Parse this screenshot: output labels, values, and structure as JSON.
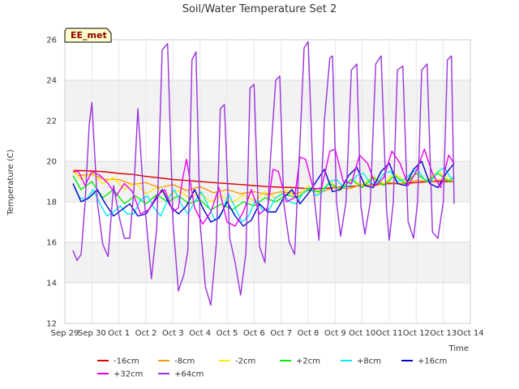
{
  "chart_data": {
    "type": "line",
    "title": "Soil/Water Temperature Set 2",
    "xlabel": "Time",
    "ylabel": "Temperature (C)",
    "badge": "EE_met",
    "ylim": [
      12,
      26
    ],
    "yticks": [
      "12",
      "14",
      "16",
      "18",
      "20",
      "22",
      "24",
      "26"
    ],
    "xlim": [
      0,
      15
    ],
    "xticks": [
      "Sep 29",
      "Sep 30",
      "Oct 1",
      "Oct 2",
      "Oct 3",
      "Oct 4",
      "Oct 5",
      "Oct 6",
      "Oct 7",
      "Oct 8",
      "Oct 9",
      "Oct 10",
      "Oct 11",
      "Oct 12",
      "Oct 13",
      "Oct 14"
    ],
    "grid": true,
    "legend": "bottom",
    "series": [
      {
        "name": "-16cm",
        "color": "#dd0000",
        "x": [
          0.3,
          1,
          1.5,
          2,
          2.5,
          3,
          3.5,
          4,
          4.5,
          5,
          5.5,
          6,
          6.5,
          7,
          7.5,
          8,
          8.5,
          9,
          9.5,
          10,
          10.5,
          11,
          11.5,
          12,
          12.5,
          13,
          13.5,
          14,
          14.4
        ],
        "y": [
          19.55,
          19.52,
          19.48,
          19.4,
          19.35,
          19.25,
          19.18,
          19.1,
          19.05,
          19.0,
          18.95,
          18.9,
          18.85,
          18.8,
          18.75,
          18.72,
          18.7,
          18.65,
          18.65,
          18.7,
          18.75,
          18.8,
          18.85,
          18.9,
          18.9,
          18.95,
          19.0,
          19.0,
          19.0
        ]
      },
      {
        "name": "-8cm",
        "color": "#ff9900",
        "x": [
          0.3,
          0.5,
          1,
          1.5,
          2,
          2.5,
          3,
          3.5,
          4,
          4.5,
          5,
          5.5,
          6,
          6.5,
          7,
          7.5,
          8,
          8.5,
          9,
          9.5,
          10,
          10.5,
          11,
          11.5,
          12,
          12.5,
          13,
          13.5,
          14,
          14.4
        ],
        "y": [
          19.5,
          19.3,
          19.35,
          19.1,
          19.1,
          18.85,
          18.95,
          18.7,
          18.85,
          18.55,
          18.75,
          18.45,
          18.6,
          18.4,
          18.5,
          18.35,
          18.5,
          18.4,
          18.55,
          18.5,
          18.7,
          18.65,
          18.85,
          18.8,
          18.95,
          18.9,
          19.05,
          19.0,
          19.1,
          19.0
        ]
      },
      {
        "name": "-2cm",
        "color": "#ffee00",
        "x": [
          0.3,
          0.6,
          1,
          1.4,
          1.8,
          2.2,
          2.6,
          3,
          3.4,
          3.8,
          4.2,
          4.6,
          5,
          5.4,
          5.8,
          6.2,
          6.6,
          7,
          7.4,
          7.8,
          8.2,
          8.6,
          9,
          9.4,
          9.8,
          10.2,
          10.6,
          11,
          11.4,
          11.8,
          12.2,
          12.6,
          13,
          13.4,
          13.8,
          14.2,
          14.4
        ],
        "y": [
          19.6,
          19.1,
          19.45,
          18.9,
          19.2,
          18.6,
          18.95,
          18.4,
          18.7,
          18.3,
          18.55,
          18.2,
          18.4,
          18.0,
          18.3,
          17.95,
          18.35,
          18.05,
          18.5,
          18.2,
          18.6,
          18.2,
          18.8,
          18.4,
          19.0,
          18.6,
          19.1,
          18.8,
          19.25,
          18.9,
          19.4,
          19.0,
          19.4,
          19.05,
          19.5,
          19.1,
          19.2
        ]
      },
      {
        "name": "+2cm",
        "color": "#00ee00",
        "x": [
          0.3,
          0.6,
          1,
          1.4,
          1.8,
          2.2,
          2.6,
          3,
          3.4,
          3.8,
          4.2,
          4.6,
          5,
          5.4,
          5.8,
          6.2,
          6.6,
          7,
          7.4,
          7.8,
          8.2,
          8.6,
          9,
          9.4,
          9.8,
          10.2,
          10.6,
          11,
          11.4,
          11.8,
          12.2,
          12.6,
          13,
          13.4,
          13.8,
          14.2,
          14.4
        ],
        "y": [
          19.3,
          18.6,
          19.0,
          18.2,
          18.6,
          17.9,
          18.3,
          17.9,
          18.35,
          18.0,
          18.3,
          17.9,
          18.1,
          17.6,
          17.9,
          17.6,
          18.0,
          17.8,
          18.2,
          18.0,
          18.35,
          18.2,
          18.6,
          18.5,
          18.9,
          18.6,
          19.1,
          18.7,
          19.2,
          18.8,
          19.3,
          18.9,
          19.4,
          19.0,
          19.4,
          19.0,
          19.2
        ]
      },
      {
        "name": "+8cm",
        "color": "#00eeee",
        "x": [
          0.3,
          0.55,
          0.8,
          1.05,
          1.3,
          1.55,
          1.8,
          2.05,
          2.3,
          2.55,
          2.8,
          3.05,
          3.3,
          3.55,
          3.8,
          4.05,
          4.3,
          4.55,
          4.8,
          5.05,
          5.3,
          5.55,
          5.8,
          6.05,
          6.3,
          6.55,
          6.8,
          7.05,
          7.3,
          7.55,
          7.8,
          8.05,
          8.3,
          8.55,
          8.8,
          9.05,
          9.3,
          9.55,
          9.8,
          10.05,
          10.3,
          10.55,
          10.8,
          11.05,
          11.3,
          11.55,
          11.8,
          12.05,
          12.3,
          12.55,
          12.8,
          13.05,
          13.3,
          13.55,
          13.8,
          14.05,
          14.3,
          14.4
        ],
        "y": [
          18.9,
          18.2,
          18.1,
          18.6,
          17.9,
          17.3,
          17.5,
          17.8,
          17.4,
          17.4,
          18.1,
          18.3,
          17.7,
          17.3,
          18.1,
          18.6,
          17.9,
          17.4,
          18.0,
          18.5,
          17.8,
          17.1,
          17.4,
          18.4,
          17.7,
          17.0,
          17.3,
          18.1,
          17.6,
          17.6,
          18.2,
          18.4,
          18.0,
          17.9,
          18.4,
          18.7,
          18.3,
          18.5,
          19.0,
          19.1,
          18.7,
          18.8,
          19.3,
          19.4,
          18.9,
          18.9,
          19.4,
          19.5,
          19.0,
          19.1,
          19.4,
          19.6,
          19.1,
          19.0,
          19.5,
          19.7,
          19.1,
          19.3
        ]
      },
      {
        "name": "+16cm",
        "color": "#0000cc",
        "x": [
          0.3,
          0.6,
          0.9,
          1.2,
          1.5,
          1.8,
          2.1,
          2.4,
          2.7,
          3.0,
          3.3,
          3.6,
          3.9,
          4.2,
          4.5,
          4.8,
          5.1,
          5.4,
          5.7,
          6.0,
          6.3,
          6.6,
          6.9,
          7.2,
          7.5,
          7.8,
          8.1,
          8.4,
          8.7,
          9.0,
          9.3,
          9.6,
          9.9,
          10.2,
          10.5,
          10.8,
          11.1,
          11.4,
          11.7,
          12.0,
          12.3,
          12.6,
          12.9,
          13.2,
          13.5,
          13.8,
          14.1,
          14.4
        ],
        "y": [
          18.9,
          18.0,
          18.2,
          18.6,
          17.9,
          17.3,
          17.6,
          17.9,
          17.3,
          17.4,
          18.0,
          18.6,
          17.8,
          17.4,
          17.8,
          18.6,
          17.7,
          17.0,
          17.2,
          18.0,
          17.3,
          16.8,
          17.1,
          17.9,
          17.5,
          17.5,
          18.2,
          18.6,
          17.9,
          18.4,
          19.0,
          19.6,
          18.5,
          18.6,
          19.3,
          19.7,
          18.8,
          18.7,
          19.5,
          19.9,
          18.9,
          18.8,
          19.6,
          20.0,
          18.9,
          18.7,
          19.4,
          19.9
        ]
      },
      {
        "name": "+32cm",
        "color": "#ee00ee",
        "x": [
          0.3,
          0.5,
          0.75,
          1.0,
          1.3,
          1.6,
          1.9,
          2.2,
          2.5,
          2.8,
          3.1,
          3.4,
          3.7,
          4.0,
          4.2,
          4.35,
          4.5,
          4.8,
          5.1,
          5.4,
          5.7,
          6.0,
          6.3,
          6.6,
          6.9,
          7.2,
          7.5,
          7.7,
          7.9,
          8.2,
          8.5,
          8.7,
          8.9,
          9.2,
          9.5,
          9.8,
          10.0,
          10.3,
          10.6,
          10.9,
          11.2,
          11.5,
          11.8,
          12.1,
          12.4,
          12.7,
          13.0,
          13.3,
          13.6,
          13.9,
          14.2,
          14.4
        ],
        "y": [
          19.5,
          19.5,
          18.8,
          19.5,
          19.3,
          18.9,
          18.3,
          18.9,
          18.5,
          17.4,
          17.6,
          18.3,
          18.6,
          17.5,
          17.7,
          19.1,
          20.1,
          17.7,
          16.9,
          17.5,
          18.7,
          17.0,
          16.8,
          17.5,
          18.6,
          17.4,
          17.7,
          19.6,
          19.5,
          18.0,
          18.2,
          20.2,
          20.1,
          18.6,
          18.7,
          20.5,
          20.6,
          19.0,
          18.9,
          20.3,
          19.9,
          18.8,
          19.2,
          20.5,
          19.9,
          18.8,
          19.5,
          20.6,
          19.4,
          18.7,
          20.3,
          19.9
        ]
      },
      {
        "name": "+64cm",
        "color": "#9933dd",
        "x": [
          0.3,
          0.45,
          0.6,
          0.75,
          0.9,
          1.0,
          1.2,
          1.4,
          1.6,
          1.8,
          2.0,
          2.2,
          2.4,
          2.55,
          2.7,
          2.9,
          3.0,
          3.2,
          3.4,
          3.6,
          3.8,
          4.0,
          4.2,
          4.4,
          4.55,
          4.7,
          4.85,
          5.0,
          5.2,
          5.4,
          5.6,
          5.75,
          5.9,
          6.1,
          6.3,
          6.5,
          6.7,
          6.85,
          7.0,
          7.2,
          7.4,
          7.6,
          7.8,
          7.95,
          8.1,
          8.3,
          8.5,
          8.7,
          8.85,
          9.0,
          9.2,
          9.4,
          9.6,
          9.8,
          9.9,
          10.05,
          10.2,
          10.4,
          10.6,
          10.8,
          10.95,
          11.1,
          11.3,
          11.5,
          11.7,
          11.9,
          12.0,
          12.15,
          12.3,
          12.5,
          12.7,
          12.9,
          13.05,
          13.2,
          13.4,
          13.6,
          13.8,
          14.0,
          14.15,
          14.3,
          14.4
        ],
        "y": [
          15.6,
          15.1,
          15.4,
          18.0,
          21.8,
          22.9,
          18.0,
          15.9,
          15.3,
          18.8,
          17.3,
          16.2,
          16.2,
          18.5,
          22.6,
          18.5,
          17.2,
          14.2,
          16.7,
          25.5,
          25.8,
          17.0,
          13.6,
          14.4,
          15.6,
          25.0,
          25.4,
          17.0,
          13.8,
          12.9,
          15.9,
          22.6,
          22.8,
          16.2,
          15.0,
          13.4,
          15.5,
          23.6,
          23.8,
          15.8,
          15.0,
          20.0,
          24.0,
          24.2,
          17.9,
          16.0,
          15.4,
          21.0,
          25.6,
          25.9,
          18.5,
          16.1,
          22.0,
          25.1,
          25.2,
          18.0,
          16.3,
          18.0,
          24.5,
          24.8,
          17.8,
          16.4,
          18.0,
          24.8,
          25.2,
          17.6,
          16.1,
          18.0,
          24.5,
          24.7,
          17.0,
          16.2,
          18.0,
          24.5,
          24.8,
          16.5,
          16.2,
          18.0,
          25.0,
          25.2,
          17.9
        ]
      }
    ]
  }
}
